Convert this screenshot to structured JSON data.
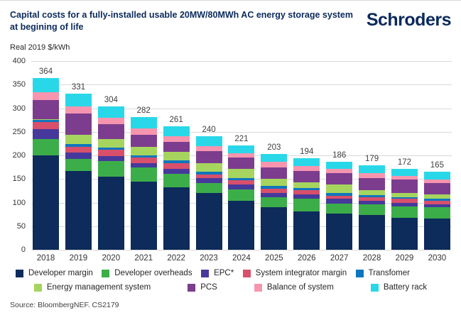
{
  "header": {
    "title": "Capital costs for a fully-installed usable 20MW/80MWh AC energy storage system at begining of life",
    "logo": "Schroders"
  },
  "source": "Source: BloombergNEF. CS2179",
  "colors": {
    "brand_navy": "#0b2a5c",
    "grid": "#d9d9d9",
    "label_text": "#404040"
  },
  "chart_data": {
    "type": "bar",
    "stacked": true,
    "title": "Capital costs for a fully-installed usable 20MW/80MWh AC energy storage system at begining of life",
    "ylabel": "Real 2019 $/kWh",
    "xlabel": "",
    "ylim": [
      0,
      400
    ],
    "yticks": [
      0,
      50,
      100,
      150,
      200,
      250,
      300,
      350,
      400
    ],
    "grid": "horizontal",
    "legend_position": "bottom",
    "legend_rows": [
      5,
      4
    ],
    "categories": [
      "2018",
      "2019",
      "2020",
      "2021",
      "2022",
      "2023",
      "2024",
      "2025",
      "2026",
      "2027",
      "2028",
      "2029",
      "2030"
    ],
    "totals": [
      364,
      331,
      304,
      282,
      261,
      240,
      221,
      203,
      194,
      186,
      179,
      172,
      165
    ],
    "series": [
      {
        "name": "Developer margin",
        "color": "#0d2b5b",
        "values": [
          200,
          167,
          155,
          144,
          133,
          120,
          104,
          91,
          81,
          77,
          74,
          68,
          66
        ]
      },
      {
        "name": "Developer overheads",
        "color": "#3cae49",
        "values": [
          35,
          25,
          33,
          30,
          28,
          21,
          24,
          21,
          27,
          21,
          23,
          24,
          25
        ]
      },
      {
        "name": "EPC*",
        "color": "#46399b",
        "values": [
          20,
          14,
          10,
          10,
          11,
          11,
          10,
          9,
          9,
          10,
          7,
          8,
          6
        ]
      },
      {
        "name": "System integrator margin",
        "color": "#d8506b",
        "values": [
          15,
          12,
          14,
          11,
          11,
          8,
          10,
          8,
          10,
          7,
          7,
          8,
          7
        ]
      },
      {
        "name": "Transfomer",
        "color": "#0f76bd",
        "values": [
          5,
          6,
          5,
          5,
          6,
          6,
          4,
          6,
          4,
          6,
          5,
          4,
          5
        ]
      },
      {
        "name": "Energy management system",
        "color": "#a6d55f",
        "values": [
          2,
          20,
          18,
          18,
          18,
          17,
          19,
          16,
          12,
          17,
          10,
          9,
          9
        ]
      },
      {
        "name": "PCS",
        "color": "#7c3d8e",
        "values": [
          40,
          45,
          32,
          25,
          22,
          26,
          24,
          24,
          24,
          25,
          26,
          28,
          23
        ]
      },
      {
        "name": "Balance of system",
        "color": "#f795af",
        "values": [
          17,
          15,
          13,
          14,
          11,
          11,
          9,
          11,
          11,
          8,
          10,
          8,
          8
        ]
      },
      {
        "name": "Battery rack",
        "color": "#29d8e8",
        "values": [
          30,
          27,
          24,
          25,
          21,
          20,
          17,
          17,
          16,
          15,
          17,
          15,
          16
        ]
      }
    ]
  }
}
